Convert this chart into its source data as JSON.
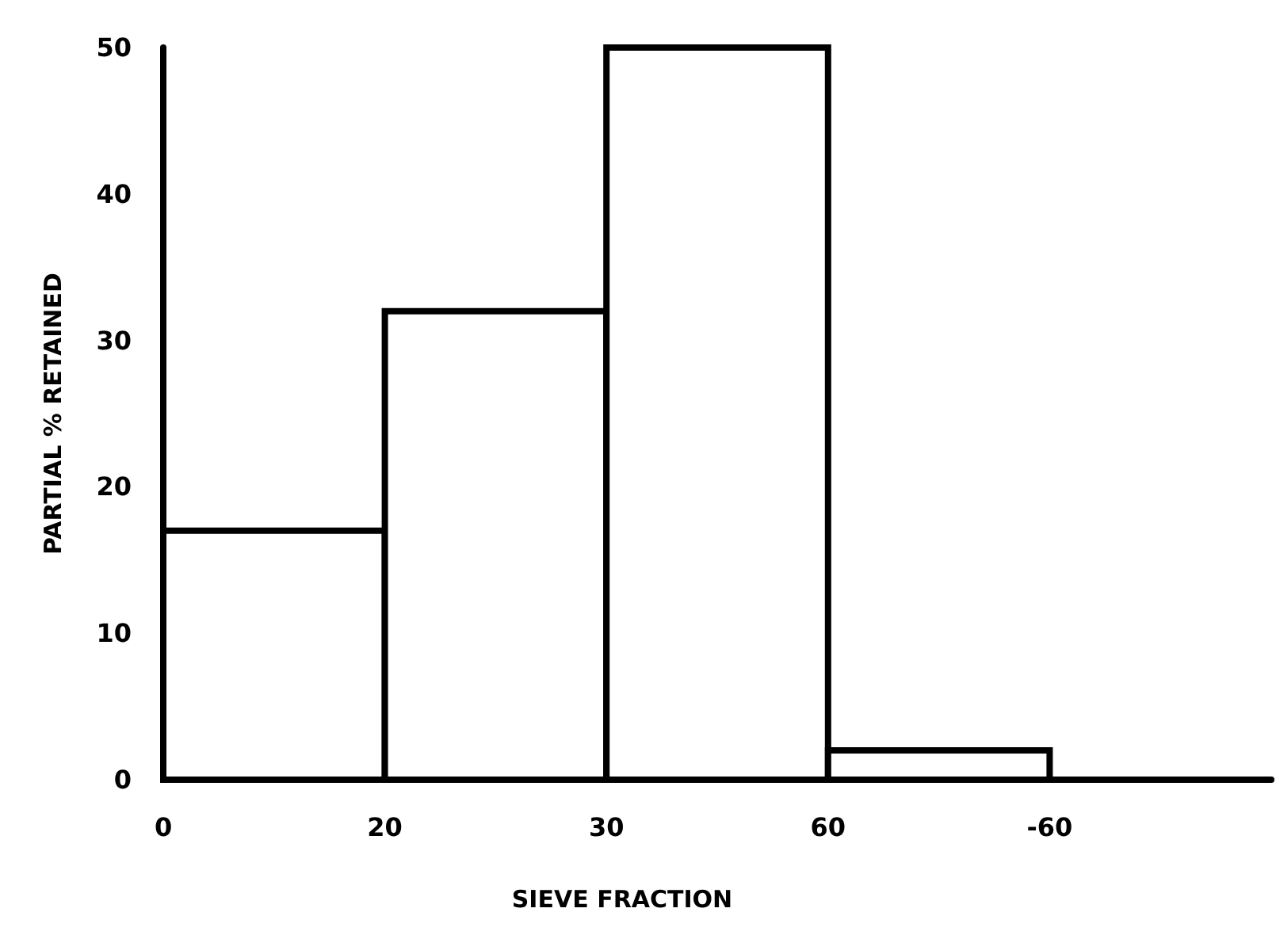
{
  "chart_data": {
    "type": "bar",
    "xlabel": "SIEVE FRACTION",
    "ylabel": "PARTIAL % RETAINED",
    "categories": [
      "0",
      "20",
      "30",
      "60",
      "-60",
      null
    ],
    "values": [
      17,
      32,
      50,
      2,
      null,
      null
    ],
    "color": "#ffffff",
    "ylim": [
      0,
      50
    ],
    "yticks": [
      0,
      10,
      20,
      30,
      40,
      50
    ],
    "grid": false
  }
}
